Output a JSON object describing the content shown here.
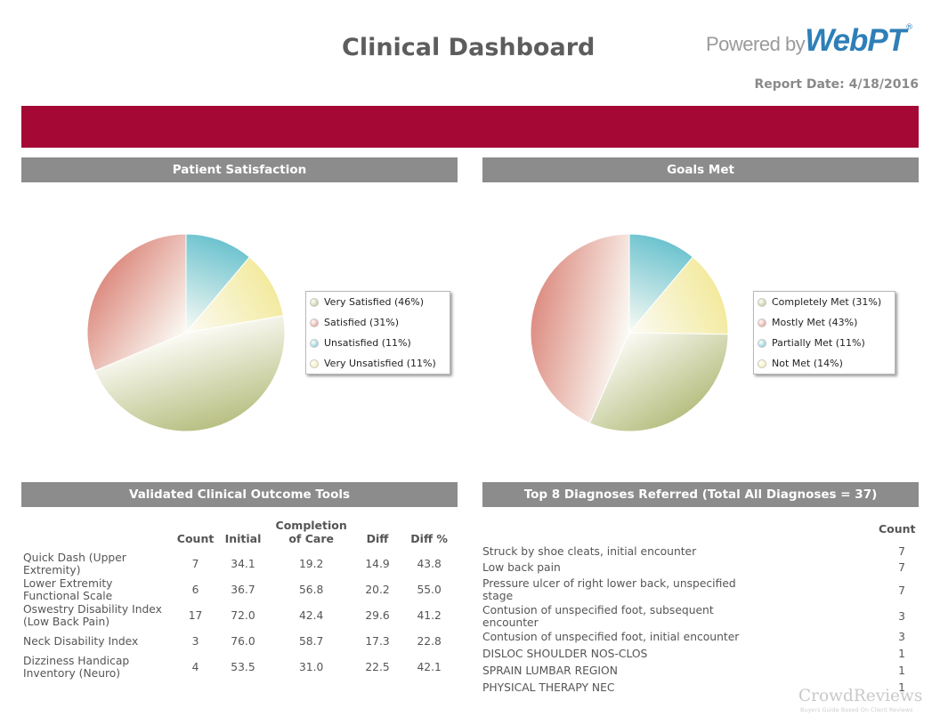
{
  "header": {
    "title": "Clinical Dashboard",
    "logo_prefix": "Powered by",
    "logo_brand": "WebPT",
    "logo_mark": "®",
    "report_date": "Report Date: 4/18/2016"
  },
  "colors": {
    "banner": "#a50834",
    "section_header": "#8c8c8c",
    "brand_blue": "#2e7fb8"
  },
  "patient_satisfaction": {
    "header": "Patient Satisfaction",
    "legend": [
      "Very Satisfied (46%)",
      "Satisfied (31%)",
      "Unsatisfied (11%)",
      "Very Unsatisfied (11%)"
    ]
  },
  "goals_met": {
    "header": "Goals Met",
    "legend": [
      "Completely Met (31%)",
      "Mostly Met (43%)",
      "Partially Met (11%)",
      "Not Met (14%)"
    ]
  },
  "chart_data": [
    {
      "type": "pie",
      "title": "Patient Satisfaction",
      "categories": [
        "Very Satisfied",
        "Satisfied",
        "Unsatisfied",
        "Very Unsatisfied"
      ],
      "values": [
        46,
        31,
        11,
        11
      ],
      "colors": [
        "#b8bf82",
        "#dd8d82",
        "#6cc3cf",
        "#f3ea9e"
      ],
      "legend_position": "right"
    },
    {
      "type": "pie",
      "title": "Goals Met",
      "categories": [
        "Completely Met",
        "Mostly Met",
        "Partially Met",
        "Not Met"
      ],
      "values": [
        31,
        43,
        11,
        14
      ],
      "colors": [
        "#b8bf82",
        "#dd8d82",
        "#6cc3cf",
        "#f3ea9e"
      ],
      "legend_position": "right"
    }
  ],
  "outcome_tools": {
    "header": "Validated Clinical Outcome Tools",
    "columns": [
      "Count",
      "Initial",
      "Completion of Care",
      "Diff",
      "Diff %"
    ],
    "rows": [
      {
        "name": "Quick Dash (Upper Extremity)",
        "count": "7",
        "initial": "34.1",
        "completion": "19.2",
        "diff": "14.9",
        "diff_pct": "43.8"
      },
      {
        "name": "Lower Extremity Functional Scale",
        "count": "6",
        "initial": "36.7",
        "completion": "56.8",
        "diff": "20.2",
        "diff_pct": "55.0"
      },
      {
        "name": "Oswestry Disability Index (Low Back Pain)",
        "count": "17",
        "initial": "72.0",
        "completion": "42.4",
        "diff": "29.6",
        "diff_pct": "41.2"
      },
      {
        "name": "Neck Disability Index",
        "count": "3",
        "initial": "76.0",
        "completion": "58.7",
        "diff": "17.3",
        "diff_pct": "22.8"
      },
      {
        "name": "Dizziness Handicap Inventory (Neuro)",
        "count": "4",
        "initial": "53.5",
        "completion": "31.0",
        "diff": "22.5",
        "diff_pct": "42.1"
      }
    ]
  },
  "diagnoses": {
    "header": "Top 8 Diagnoses Referred (Total All Diagnoses = 37)",
    "count_header": "Count",
    "rows": [
      {
        "label": "Struck by shoe cleats, initial encounter",
        "count": "7"
      },
      {
        "label": "Low back pain",
        "count": "7"
      },
      {
        "label": "Pressure ulcer of right lower back, unspecified stage",
        "count": "7"
      },
      {
        "label": "Contusion of unspecified foot, subsequent encounter",
        "count": "3"
      },
      {
        "label": "Contusion of unspecified foot, initial encounter",
        "count": "3"
      },
      {
        "label": "DISLOC SHOULDER NOS-CLOS",
        "count": "1"
      },
      {
        "label": "SPRAIN LUMBAR REGION",
        "count": "1"
      },
      {
        "label": "PHYSICAL THERAPY NEC",
        "count": "1"
      }
    ]
  },
  "watermark": {
    "text": "CrowdReviews",
    "subtext": "Buyers Guide Based On Client Reviews"
  }
}
